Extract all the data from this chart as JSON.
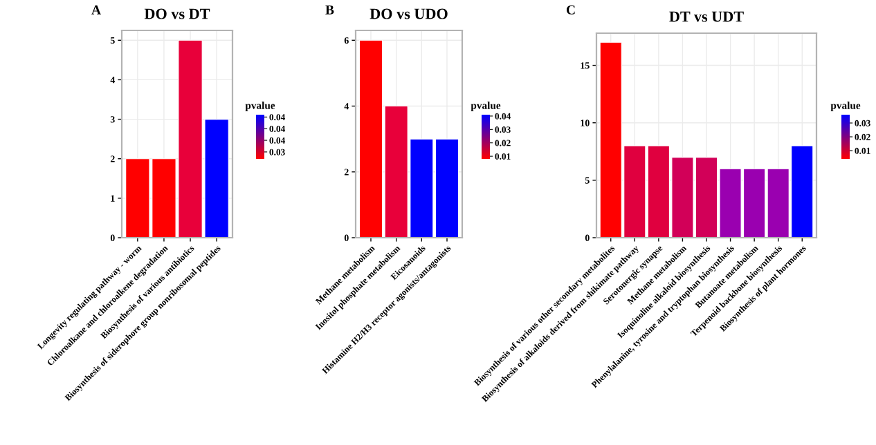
{
  "chart_data": [
    {
      "type": "bar",
      "title": "DO vs DT",
      "annotations": [
        "A"
      ],
      "categories": [
        "Longevity regulating pathway - worm",
        "Chloroalkane and chloroalkene degradation",
        "Biosynthesis of various antibiotics",
        "Biosynthesis of siderophore group nonribosomal peptides"
      ],
      "values": [
        2,
        2,
        5,
        3
      ],
      "colors": [
        "#ff0000",
        "#ff0000",
        "#e8003a",
        "#0000ff"
      ],
      "ylim": [
        0,
        5.25
      ],
      "yticks": [
        0,
        1,
        2,
        3,
        4,
        5
      ],
      "grid": true,
      "clabel": "pvalue",
      "clim": [
        0.031,
        0.0405
      ],
      "cticks": [
        {
          "value": 0.0325,
          "label": "0.03"
        },
        {
          "value": 0.035,
          "label": "0.04"
        },
        {
          "value": 0.0375,
          "label": "0.04"
        },
        {
          "value": 0.04,
          "label": "0.04"
        }
      ]
    },
    {
      "type": "bar",
      "title": "DO vs UDO",
      "annotations": [
        "B"
      ],
      "categories": [
        "Methane metabolism",
        "Inositol phosphate metabolism",
        "Eicosanoids",
        "Histamine H2/H3 receptor agonists/antagonists"
      ],
      "values": [
        6,
        4,
        3,
        3
      ],
      "colors": [
        "#ff0000",
        "#e8003a",
        "#0000ff",
        "#0000ff"
      ],
      "ylim": [
        0,
        6.3
      ],
      "yticks": [
        0,
        2,
        4,
        6
      ],
      "grid": true,
      "clabel": "pvalue",
      "clim": [
        0.008,
        0.041
      ],
      "cticks": [
        0.01,
        0.02,
        0.03,
        0.04
      ]
    },
    {
      "type": "bar",
      "title": "DT vs UDT",
      "annotations": [
        "C"
      ],
      "categories": [
        "Biosynthesis of various other secondary metabolites",
        "Biosynthesis of alkaloids derived from shikimate pathway",
        "Serotonergic synapse",
        "Methane metabolism",
        "Isoquinoline alkaloid biosynthesis",
        "Phenylalanine, tyrosine and tryptophan biosynthesis",
        "Butanoate metabolism",
        "Terpenoid backbone biosynthesis",
        "Biosynthesis of plant hormones"
      ],
      "values": [
        17,
        8,
        8,
        7,
        7,
        6,
        6,
        6,
        8
      ],
      "colors": [
        "#ff0000",
        "#e0003f",
        "#e0003f",
        "#d20058",
        "#d20058",
        "#9a00b0",
        "#9a00b0",
        "#9a00b0",
        "#0000ff"
      ],
      "ylim": [
        0,
        17.8
      ],
      "yticks": [
        0,
        5,
        10,
        15
      ],
      "grid": true,
      "clabel": "pvalue",
      "clim": [
        0.004,
        0.036
      ],
      "cticks": [
        0.01,
        0.02,
        0.03
      ]
    }
  ]
}
